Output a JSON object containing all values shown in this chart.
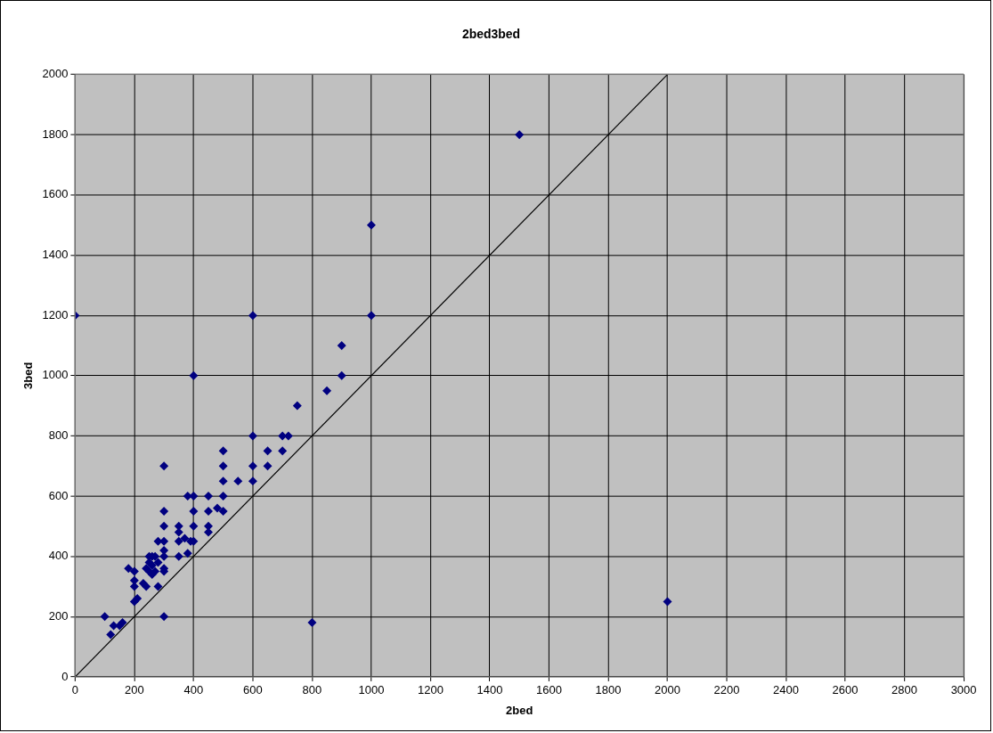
{
  "chart_data": {
    "type": "scatter",
    "title": "2bed3bed",
    "xlabel": "2bed",
    "ylabel": "3bed",
    "xlim": [
      0,
      3000
    ],
    "ylim": [
      0,
      2000
    ],
    "xticks": [
      0,
      200,
      400,
      600,
      800,
      1000,
      1200,
      1400,
      1600,
      1800,
      2000,
      2200,
      2400,
      2600,
      2800,
      3000
    ],
    "yticks": [
      0,
      200,
      400,
      600,
      800,
      1000,
      1200,
      1400,
      1600,
      1800,
      2000
    ],
    "grid": true,
    "legend": false,
    "marker": "diamond",
    "series": [
      {
        "color": "#000080",
        "x": [
          0,
          600,
          1500,
          1000,
          1000,
          400,
          900,
          900,
          850,
          750,
          600,
          700,
          720,
          700,
          650,
          650,
          600,
          600,
          550,
          500,
          500,
          500,
          500,
          500,
          450,
          450,
          450,
          450,
          400,
          380,
          400,
          400,
          400,
          390,
          380,
          370,
          350,
          350,
          350,
          350,
          300,
          300,
          300,
          300,
          300,
          300,
          300,
          300,
          300,
          280,
          270,
          260,
          250,
          250,
          260,
          270,
          280,
          250,
          240,
          240,
          230,
          210,
          200,
          200,
          200,
          200,
          180,
          160,
          150,
          130,
          120,
          100,
          800,
          2000,
          480,
          260,
          280
        ],
        "values": [
          1200,
          1200,
          1800,
          1500,
          1200,
          1000,
          1100,
          1000,
          950,
          900,
          800,
          800,
          800,
          750,
          750,
          700,
          700,
          650,
          650,
          750,
          700,
          650,
          600,
          550,
          600,
          550,
          500,
          480,
          600,
          600,
          550,
          500,
          450,
          450,
          410,
          460,
          500,
          480,
          450,
          400,
          700,
          550,
          500,
          450,
          420,
          400,
          360,
          350,
          200,
          450,
          400,
          400,
          400,
          380,
          370,
          350,
          300,
          350,
          360,
          300,
          310,
          260,
          250,
          300,
          320,
          350,
          360,
          180,
          170,
          170,
          140,
          200,
          180,
          250,
          560,
          340,
          380
        ]
      },
      {
        "type": "line",
        "color": "#000000",
        "marker": "none",
        "x": [
          0,
          2000
        ],
        "values": [
          0,
          2000
        ]
      }
    ]
  }
}
